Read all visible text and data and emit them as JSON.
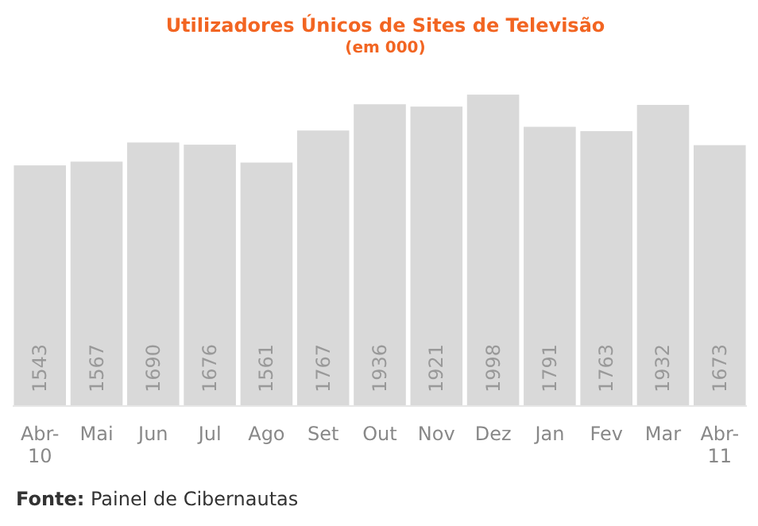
{
  "chart_data": {
    "type": "bar",
    "title": "Utilizadores Únicos de Sites de Televisão",
    "subtitle": "(em 000)",
    "categories": [
      "Abr-10",
      "Mai",
      "Jun",
      "Jul",
      "Ago",
      "Set",
      "Out",
      "Nov",
      "Dez",
      "Jan",
      "Fev",
      "Mar",
      "Abr-11"
    ],
    "values": [
      1543,
      1567,
      1690,
      1676,
      1561,
      1767,
      1936,
      1921,
      1998,
      1791,
      1763,
      1932,
      1673
    ],
    "color": "#d9d9d9",
    "data_labels": true,
    "annotations": [
      "Fonte: Painel de Cibernautas"
    ]
  }
}
